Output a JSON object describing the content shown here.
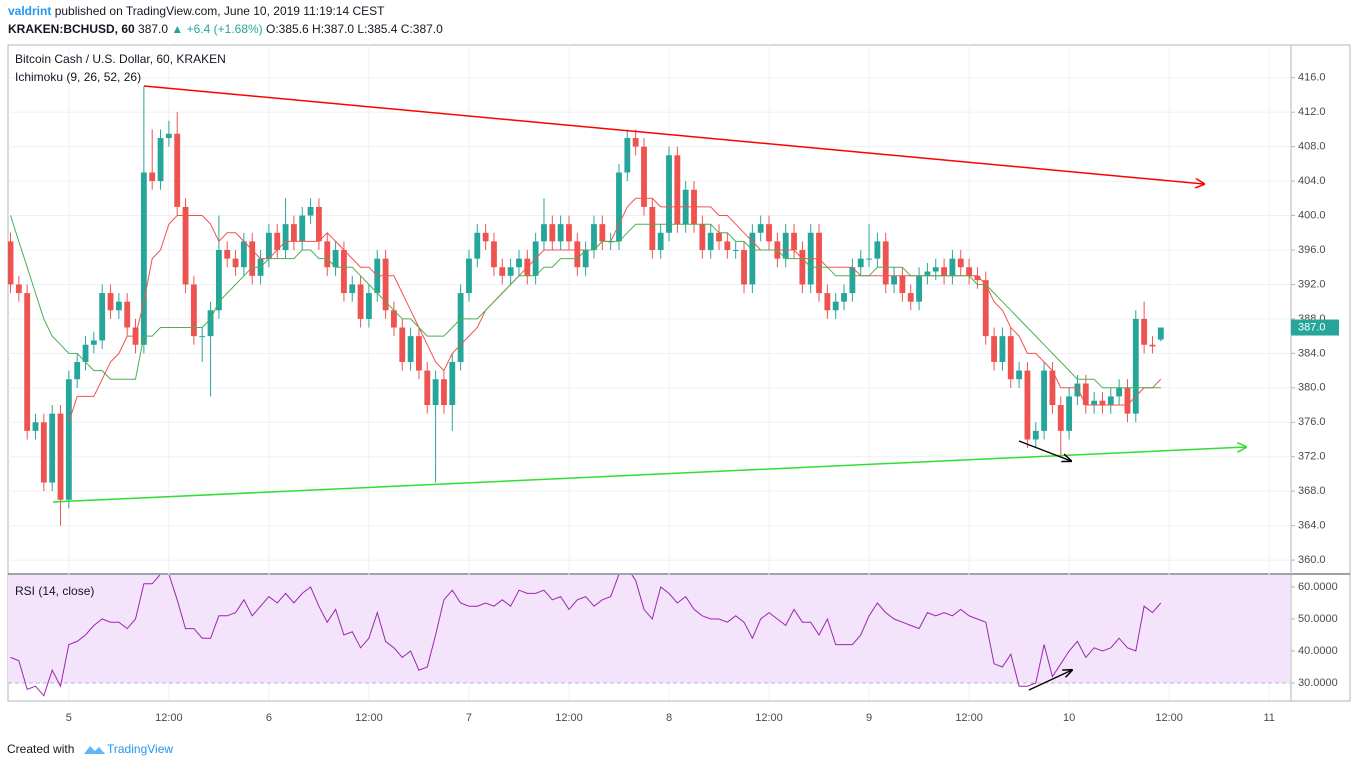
{
  "header": {
    "author": "valdrint",
    "published": "published on TradingView.com, June 10, 2019 11:19:14 CEST",
    "symbol": "KRAKEN:BCHUSD, 60",
    "price": "387.0",
    "change": "▲ +6.4 (+1.68%)",
    "ohlc": "O:385.6 H:387.0 L:385.4 C:387.0"
  },
  "footer": {
    "created": "Created with",
    "brand": "TradingView"
  },
  "chart_data": [
    {
      "type": "candlestick",
      "title": "Bitcoin Cash / U.S. Dollar, 60, KRAKEN",
      "indicator": "Ichimoku (9, 26, 52, 26)",
      "up_color": "#26a69a",
      "down_color": "#ef5350",
      "open": [
        397,
        392,
        391,
        375,
        376,
        369,
        377,
        367,
        381,
        383,
        385,
        385.5,
        391,
        389,
        390,
        387,
        385,
        405,
        404,
        409,
        409.5,
        401,
        392,
        386,
        386,
        389,
        396,
        395,
        394,
        397,
        393,
        395,
        398,
        396,
        399,
        397,
        400,
        401,
        397,
        394,
        396,
        391,
        392,
        388,
        391,
        395,
        389,
        387,
        383,
        386,
        382,
        378,
        381,
        378,
        383,
        391,
        395,
        398,
        397,
        394,
        393,
        394,
        395,
        393,
        397,
        399,
        397,
        399,
        397,
        394,
        396,
        399,
        397,
        397,
        405,
        409,
        408,
        401,
        396,
        398,
        407,
        399,
        403,
        399,
        396,
        398,
        397,
        396,
        396,
        392,
        398,
        399,
        397,
        395,
        398,
        396,
        392,
        398,
        391,
        389,
        390,
        391,
        394,
        395,
        395,
        397,
        392,
        393,
        391,
        390,
        393,
        393.5,
        394,
        393,
        395,
        394,
        393,
        392.5,
        386,
        383,
        386,
        381,
        382,
        374,
        375,
        382,
        378,
        375,
        379,
        380.5,
        378,
        378.5,
        378,
        379,
        380,
        377,
        388,
        385,
        385.6
      ],
      "high": [
        398,
        393,
        392,
        377,
        377,
        378,
        378,
        382,
        384,
        386,
        386.5,
        392,
        392,
        391,
        391,
        388,
        415,
        410,
        410,
        411,
        412,
        402,
        393,
        387,
        390,
        400,
        397,
        396,
        398,
        398,
        396,
        399,
        399,
        402,
        400,
        401,
        402,
        402,
        398,
        397,
        397,
        393,
        393,
        392,
        396,
        396,
        390,
        388,
        387,
        387,
        383,
        382,
        382,
        384,
        392,
        396,
        399,
        399,
        398,
        395,
        395,
        396,
        396,
        398,
        402,
        400,
        400,
        400,
        398,
        397,
        400,
        400,
        398,
        406,
        410,
        410,
        409,
        402,
        399,
        408,
        408,
        404,
        404,
        400,
        399,
        399,
        398,
        397,
        397,
        399,
        400,
        400,
        398,
        399,
        399,
        397,
        399,
        399,
        392,
        391,
        392,
        395,
        396,
        399,
        398,
        398,
        394,
        394,
        392,
        394,
        394.5,
        395,
        395,
        396,
        396,
        395,
        394,
        393.5,
        387,
        387,
        387,
        383,
        383,
        376,
        383,
        383,
        379,
        380,
        381.5,
        381.5,
        379.5,
        379.5,
        380,
        381,
        381,
        389,
        390,
        386,
        387
      ],
      "low": [
        391,
        390,
        374,
        374,
        368,
        368,
        364,
        366,
        380,
        382,
        384,
        384.5,
        388,
        388,
        386,
        384,
        384,
        403,
        403,
        408,
        400,
        391,
        385,
        383,
        379,
        388,
        394,
        393,
        393,
        392,
        392,
        394,
        395,
        395,
        396,
        396,
        399,
        396,
        393,
        393,
        390,
        390,
        387,
        387,
        390,
        388,
        386,
        382,
        382,
        381,
        377,
        369,
        377,
        375,
        382,
        390,
        394,
        396,
        393,
        392,
        392,
        393,
        392,
        392,
        396,
        396,
        396,
        396,
        393,
        393,
        395,
        396,
        396,
        396,
        404,
        407,
        400,
        395,
        395,
        397,
        398,
        398,
        398,
        395,
        395,
        396,
        395,
        395,
        391,
        391,
        397,
        396,
        394,
        394,
        395,
        391,
        391,
        390,
        388,
        388,
        389,
        390,
        393,
        394,
        394,
        391,
        391,
        390,
        389,
        389,
        392,
        392.5,
        392,
        392,
        393,
        392,
        391.5,
        385,
        382,
        382,
        380,
        380,
        373,
        373,
        374,
        377,
        372,
        374,
        378,
        377,
        377,
        377,
        377,
        378,
        376,
        376,
        384,
        384,
        385.4
      ],
      "close": [
        392,
        391,
        375,
        376,
        369,
        377,
        367,
        381,
        383,
        385,
        385.5,
        391,
        389,
        390,
        387,
        385,
        405,
        404,
        409,
        409.5,
        401,
        392,
        386,
        386,
        389,
        396,
        395,
        394,
        397,
        393,
        395,
        398,
        396,
        399,
        397,
        400,
        401,
        397,
        394,
        396,
        391,
        392,
        388,
        391,
        395,
        389,
        387,
        383,
        386,
        382,
        378,
        381,
        378,
        383,
        391,
        395,
        398,
        397,
        394,
        393,
        394,
        395,
        393,
        397,
        399,
        397,
        399,
        397,
        394,
        396,
        399,
        397,
        397,
        405,
        409,
        408,
        401,
        396,
        398,
        407,
        399,
        403,
        399,
        396,
        398,
        397,
        396,
        396,
        392,
        398,
        399,
        397,
        395,
        398,
        396,
        392,
        398,
        391,
        389,
        390,
        391,
        394,
        395,
        395,
        397,
        392,
        393,
        391,
        390,
        393,
        393.5,
        394,
        393,
        395,
        394,
        393,
        392.5,
        386,
        383,
        386,
        381,
        382,
        374,
        375,
        382,
        378,
        375,
        379,
        380.5,
        378,
        378.5,
        378,
        379,
        380,
        377,
        388,
        385,
        384.8,
        387
      ],
      "last_label": "387.0",
      "lines": [
        {
          "color": "#ef5350",
          "values": [
            null,
            null,
            null,
            null,
            null,
            null,
            null,
            376,
            379,
            379,
            379,
            381,
            383,
            384,
            386,
            386,
            390,
            395,
            396,
            399,
            400,
            400,
            400,
            400,
            399,
            397,
            398,
            398,
            397,
            396,
            395,
            395,
            396,
            397,
            397,
            397,
            397,
            397,
            398,
            397,
            396,
            395,
            394,
            394,
            393,
            393,
            393,
            391,
            389,
            387,
            385,
            383,
            382,
            384,
            385,
            386,
            387,
            389,
            390,
            391,
            392,
            393,
            394,
            395,
            396,
            396,
            396,
            396,
            396,
            396,
            396,
            397,
            397,
            399,
            401,
            402,
            402,
            402,
            401,
            401,
            401,
            401,
            401,
            401,
            401,
            400,
            400,
            399,
            398,
            397,
            396,
            396,
            396,
            396,
            396,
            395,
            395,
            395,
            394,
            394,
            394,
            394,
            393,
            393,
            393,
            393,
            393,
            393,
            393,
            393,
            393,
            393,
            393,
            393,
            393,
            393,
            393,
            392,
            390,
            389,
            387,
            386,
            384,
            384,
            383,
            382,
            380,
            380,
            380,
            378,
            378,
            378,
            378,
            378,
            378,
            379,
            380,
            380,
            381
          ]
        },
        {
          "color": "#4caf50",
          "values": [
            400,
            397,
            394,
            391,
            388,
            386,
            385,
            384,
            384,
            383,
            382,
            382,
            381,
            381,
            381,
            381,
            386,
            386,
            387,
            387,
            387,
            387,
            387,
            387,
            388,
            390,
            391,
            392,
            393,
            394,
            394,
            395,
            395,
            395,
            395,
            396,
            396,
            395,
            395,
            394,
            394,
            394,
            393,
            392,
            391,
            390,
            389,
            388,
            388,
            387,
            386,
            386,
            386,
            387,
            388,
            388,
            388,
            389,
            390,
            391,
            392,
            393,
            393,
            393,
            394,
            394,
            395,
            395,
            395,
            396,
            396,
            397,
            397,
            397,
            398,
            399,
            399,
            399,
            399,
            399,
            399,
            399,
            399,
            399,
            399,
            398,
            398,
            397,
            397,
            396,
            396,
            396,
            396,
            395,
            395,
            395,
            394,
            394,
            394,
            393,
            393,
            393,
            393,
            393,
            394,
            394,
            394,
            394,
            393,
            393,
            393,
            393,
            393,
            393,
            393,
            393,
            392,
            392,
            391,
            390,
            389,
            388,
            387,
            386,
            385,
            384,
            383,
            382,
            381,
            381,
            381,
            380,
            380,
            380,
            380,
            380,
            380,
            380,
            380
          ]
        }
      ],
      "xlim": [
        -0.3,
        153.5
      ],
      "ylim": [
        358.5,
        419.8
      ],
      "yticks": [
        {
          "value": 360,
          "label": "360.0"
        },
        {
          "value": 364,
          "label": "364.0"
        },
        {
          "value": 368,
          "label": "368.0"
        },
        {
          "value": 372,
          "label": "372.0"
        },
        {
          "value": 376,
          "label": "376.0"
        },
        {
          "value": 380,
          "label": "380.0"
        },
        {
          "value": 384,
          "label": "384.0"
        },
        {
          "value": 388,
          "label": "388.0"
        },
        {
          "value": 392,
          "label": "392.0"
        },
        {
          "value": 396,
          "label": "396.0"
        },
        {
          "value": 400,
          "label": "400.0"
        },
        {
          "value": 404,
          "label": "404.0"
        },
        {
          "value": 408,
          "label": "408.0"
        },
        {
          "value": 412,
          "label": "412.0"
        },
        {
          "value": 416,
          "label": "416.0"
        }
      ],
      "grid": true
    },
    {
      "type": "line",
      "title": "RSI (14, close)",
      "color": "#9c27b0",
      "values": [
        38,
        37,
        28,
        29,
        26,
        34,
        29,
        42,
        43,
        45,
        48,
        50,
        49,
        49,
        47,
        50,
        61,
        61,
        64,
        64,
        56,
        47,
        47,
        44,
        44,
        51,
        51,
        52,
        56,
        51,
        54,
        57,
        55,
        58,
        55,
        58,
        60,
        54,
        49,
        53,
        45,
        46,
        41,
        44,
        52,
        43,
        41,
        38,
        40,
        34,
        35,
        45,
        56,
        59,
        55,
        54,
        54,
        55,
        54,
        56,
        54,
        59,
        58,
        58,
        59,
        56,
        57,
        53,
        56,
        57,
        54,
        56,
        57,
        64,
        66,
        62,
        53,
        50,
        60,
        58,
        55,
        57,
        53,
        51,
        50,
        50,
        49,
        51,
        49,
        44,
        50,
        52,
        50,
        48,
        53,
        49,
        49,
        45,
        50,
        42,
        42,
        42,
        45,
        51,
        55,
        52,
        50,
        49,
        48,
        47,
        52,
        51,
        52,
        51,
        53,
        51,
        50,
        49,
        36,
        35,
        39,
        29,
        29,
        30,
        42,
        32,
        36,
        40,
        43,
        38,
        41,
        40,
        41,
        44,
        41,
        40,
        54,
        52,
        55
      ],
      "xlim": [
        -0.3,
        153.5
      ],
      "ylim": [
        24.7,
        63.75
      ],
      "yticks": [
        {
          "value": 30,
          "label": "30.0000"
        },
        {
          "value": 40,
          "label": "40.0000"
        },
        {
          "value": 50,
          "label": "50.0000"
        },
        {
          "value": 60,
          "label": "60.0000"
        }
      ],
      "xticks": [
        {
          "value": 7,
          "label": "5"
        },
        {
          "value": 19,
          "label": "12:00"
        },
        {
          "value": 31,
          "label": "6"
        },
        {
          "value": 43,
          "label": "12:00"
        },
        {
          "value": 55,
          "label": "7"
        },
        {
          "value": 67,
          "label": "12:00"
        },
        {
          "value": 79,
          "label": "8"
        },
        {
          "value": 91,
          "label": "12:00"
        },
        {
          "value": 103,
          "label": "9"
        },
        {
          "value": 115,
          "label": "12:00"
        },
        {
          "value": 127,
          "label": "10"
        },
        {
          "value": 139,
          "label": "12:00"
        },
        {
          "value": 151,
          "label": "11"
        }
      ],
      "grid": true
    }
  ]
}
